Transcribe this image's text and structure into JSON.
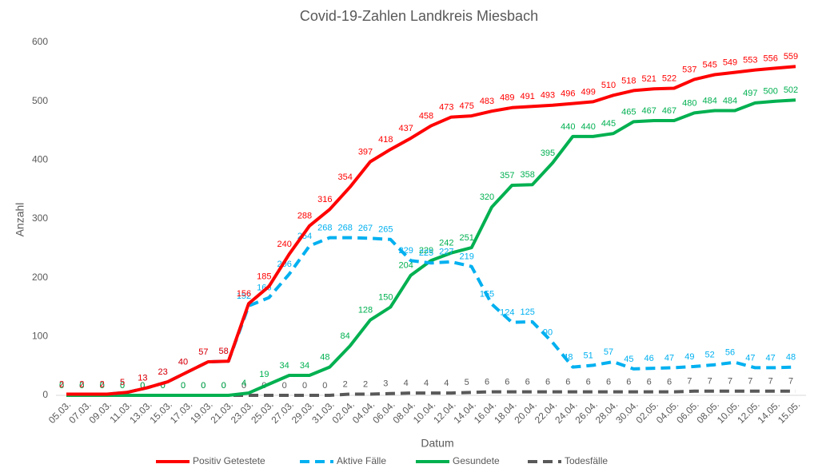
{
  "chart_data": {
    "type": "line",
    "title": "Covid-19-Zahlen Landkreis Miesbach",
    "x_label": "Datum",
    "y_label": "Anzahl",
    "categories": [
      "05.03.",
      "07.03.",
      "09.03.",
      "11.03.",
      "13.03.",
      "15.03.",
      "17.03.",
      "19.03.",
      "21.03.",
      "23.03.",
      "25.03.",
      "27.03.",
      "29.03.",
      "31.03.",
      "02.04.",
      "04.04.",
      "06.04.",
      "08.04.",
      "10.04.",
      "12.04.",
      "14.04.",
      "16.04.",
      "18.04.",
      "20.04.",
      "22.04.",
      "24.04.",
      "26.04.",
      "28.04.",
      "30.04.",
      "02.05.",
      "04.05.",
      "06.05.",
      "08.05.",
      "10.05.",
      "12.05.",
      "14.05.",
      "15.05."
    ],
    "series": [
      {
        "name": "Positiv Getestete",
        "color": "#ff0000",
        "dash": false,
        "values": [
          2,
          2,
          2,
          5,
          13,
          23,
          40,
          57,
          58,
          156,
          185,
          240,
          288,
          316,
          354,
          397,
          418,
          437,
          458,
          473,
          475,
          483,
          489,
          491,
          493,
          496,
          499,
          510,
          518,
          521,
          522,
          537,
          545,
          549,
          553,
          556,
          559
        ]
      },
      {
        "name": "Aktive Fälle",
        "color": "#00b0f0",
        "dash": true,
        "values": [
          2,
          2,
          2,
          5,
          13,
          23,
          40,
          57,
          58,
          152,
          166,
          206,
          254,
          268,
          268,
          267,
          265,
          229,
          225,
          227,
          219,
          155,
          124,
          125,
          90,
          48,
          51,
          57,
          45,
          46,
          47,
          49,
          52,
          56,
          47,
          47,
          48
        ]
      },
      {
        "name": "Gesundete",
        "color": "#00b050",
        "dash": false,
        "values": [
          0,
          0,
          0,
          0,
          0,
          0,
          0,
          0,
          0,
          4,
          19,
          34,
          34,
          48,
          84,
          128,
          150,
          204,
          229,
          242,
          251,
          320,
          357,
          358,
          395,
          440,
          440,
          445,
          465,
          467,
          467,
          480,
          484,
          484,
          497,
          500,
          502
        ]
      },
      {
        "name": "Todesfälle",
        "color": "#595959",
        "dash": true,
        "values": [
          0,
          0,
          0,
          0,
          0,
          0,
          0,
          0,
          0,
          0,
          0,
          0,
          0,
          0,
          2,
          2,
          3,
          4,
          4,
          4,
          5,
          6,
          6,
          6,
          6,
          6,
          6,
          6,
          6,
          6,
          6,
          7,
          7,
          7,
          7,
          7,
          7
        ]
      }
    ],
    "ylim": [
      0,
      600
    ],
    "yticks": [
      0,
      100,
      200,
      300,
      400,
      500,
      600
    ],
    "grid": false
  }
}
